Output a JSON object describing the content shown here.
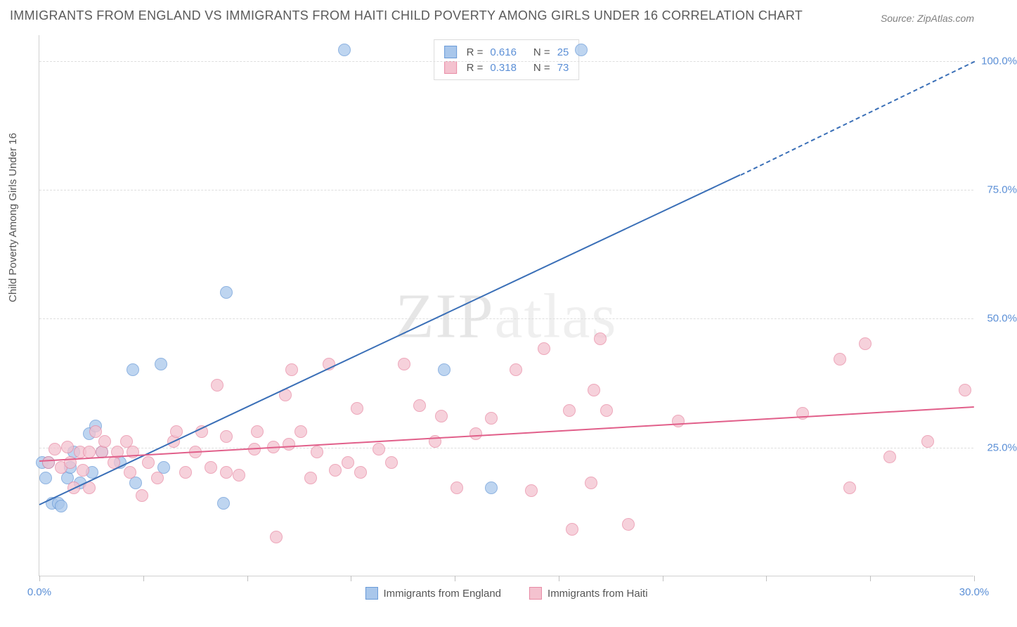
{
  "title": "IMMIGRANTS FROM ENGLAND VS IMMIGRANTS FROM HAITI CHILD POVERTY AMONG GIRLS UNDER 16 CORRELATION CHART",
  "source": "Source: ZipAtlas.com",
  "ylabel": "Child Poverty Among Girls Under 16",
  "watermark_a": "ZIP",
  "watermark_b": "atlas",
  "chart": {
    "type": "scatter",
    "background_color": "#ffffff",
    "grid_color": "#dedede",
    "axis_color": "#d0d0d0",
    "xlim": [
      0,
      30
    ],
    "ylim": [
      0,
      105
    ],
    "xticks": [
      0,
      3.33,
      6.67,
      10,
      13.33,
      16.67,
      20,
      23.33,
      26.67,
      30
    ],
    "xtick_labels": {
      "0": "0.0%",
      "30": "30.0%"
    },
    "yticks": [
      25,
      50,
      75,
      100
    ],
    "ytick_labels": [
      "25.0%",
      "50.0%",
      "75.0%",
      "100.0%"
    ],
    "label_color": "#5b8fd6",
    "label_fontsize": 15,
    "marker_radius": 9,
    "marker_opacity_fill": 0.3,
    "marker_border_width": 1.2,
    "series": [
      {
        "name": "Immigrants from England",
        "fill": "#a9c7eb",
        "stroke": "#6a9bd8",
        "R": "0.616",
        "N": "25",
        "trend": {
          "x1": 0,
          "y1": 14,
          "x2_solid": 22.5,
          "y2_solid": 78,
          "x2_dash": 30,
          "y2_dash": 100,
          "color": "#3a6fb7",
          "width": 2.5
        },
        "points": [
          {
            "x": 0.1,
            "y": 22
          },
          {
            "x": 0.2,
            "y": 19
          },
          {
            "x": 0.3,
            "y": 22
          },
          {
            "x": 0.4,
            "y": 14
          },
          {
            "x": 0.6,
            "y": 14
          },
          {
            "x": 0.7,
            "y": 13.5
          },
          {
            "x": 0.9,
            "y": 19
          },
          {
            "x": 1.0,
            "y": 21
          },
          {
            "x": 1.1,
            "y": 24
          },
          {
            "x": 1.3,
            "y": 18
          },
          {
            "x": 1.6,
            "y": 27.5
          },
          {
            "x": 1.7,
            "y": 20
          },
          {
            "x": 1.8,
            "y": 29
          },
          {
            "x": 2.0,
            "y": 24
          },
          {
            "x": 2.6,
            "y": 22
          },
          {
            "x": 3.0,
            "y": 40
          },
          {
            "x": 3.1,
            "y": 18
          },
          {
            "x": 3.9,
            "y": 41
          },
          {
            "x": 4.0,
            "y": 21
          },
          {
            "x": 5.9,
            "y": 14
          },
          {
            "x": 6.0,
            "y": 55
          },
          {
            "x": 9.8,
            "y": 102
          },
          {
            "x": 13.0,
            "y": 40
          },
          {
            "x": 14.5,
            "y": 17
          },
          {
            "x": 17.4,
            "y": 102
          }
        ]
      },
      {
        "name": "Immigrants from Haiti",
        "fill": "#f4c2cf",
        "stroke": "#e88ba5",
        "R": "0.318",
        "N": "73",
        "trend": {
          "x1": 0,
          "y1": 22.5,
          "x2_solid": 30,
          "y2_solid": 33,
          "x2_dash": 30,
          "y2_dash": 33,
          "color": "#e15f8a",
          "width": 2.5
        },
        "points": [
          {
            "x": 0.3,
            "y": 22
          },
          {
            "x": 0.5,
            "y": 24.5
          },
          {
            "x": 0.7,
            "y": 21
          },
          {
            "x": 0.9,
            "y": 25
          },
          {
            "x": 1.0,
            "y": 22
          },
          {
            "x": 1.1,
            "y": 17
          },
          {
            "x": 1.3,
            "y": 24
          },
          {
            "x": 1.4,
            "y": 20.5
          },
          {
            "x": 1.6,
            "y": 24
          },
          {
            "x": 1.6,
            "y": 17
          },
          {
            "x": 1.8,
            "y": 28
          },
          {
            "x": 2.0,
            "y": 24
          },
          {
            "x": 2.1,
            "y": 26
          },
          {
            "x": 2.4,
            "y": 22
          },
          {
            "x": 2.5,
            "y": 24
          },
          {
            "x": 2.8,
            "y": 26
          },
          {
            "x": 2.9,
            "y": 20
          },
          {
            "x": 3.0,
            "y": 24
          },
          {
            "x": 3.3,
            "y": 15.5
          },
          {
            "x": 3.5,
            "y": 22
          },
          {
            "x": 3.8,
            "y": 19
          },
          {
            "x": 4.3,
            "y": 26
          },
          {
            "x": 4.4,
            "y": 28
          },
          {
            "x": 4.7,
            "y": 20
          },
          {
            "x": 5.0,
            "y": 24
          },
          {
            "x": 5.2,
            "y": 28
          },
          {
            "x": 5.5,
            "y": 21
          },
          {
            "x": 5.7,
            "y": 37
          },
          {
            "x": 6.0,
            "y": 20
          },
          {
            "x": 6.0,
            "y": 27
          },
          {
            "x": 6.4,
            "y": 19.5
          },
          {
            "x": 6.9,
            "y": 24.5
          },
          {
            "x": 7.0,
            "y": 28
          },
          {
            "x": 7.5,
            "y": 25
          },
          {
            "x": 7.6,
            "y": 7.5
          },
          {
            "x": 7.9,
            "y": 35
          },
          {
            "x": 8.0,
            "y": 25.5
          },
          {
            "x": 8.1,
            "y": 40
          },
          {
            "x": 8.4,
            "y": 28
          },
          {
            "x": 8.7,
            "y": 19
          },
          {
            "x": 8.9,
            "y": 24
          },
          {
            "x": 9.3,
            "y": 41
          },
          {
            "x": 9.5,
            "y": 20.5
          },
          {
            "x": 9.9,
            "y": 22
          },
          {
            "x": 10.2,
            "y": 32.5
          },
          {
            "x": 10.3,
            "y": 20
          },
          {
            "x": 10.9,
            "y": 24.5
          },
          {
            "x": 11.3,
            "y": 22
          },
          {
            "x": 11.7,
            "y": 41
          },
          {
            "x": 12.2,
            "y": 33
          },
          {
            "x": 12.7,
            "y": 26
          },
          {
            "x": 12.9,
            "y": 31
          },
          {
            "x": 13.4,
            "y": 17
          },
          {
            "x": 14.0,
            "y": 27.5
          },
          {
            "x": 14.5,
            "y": 30.5
          },
          {
            "x": 15.3,
            "y": 40
          },
          {
            "x": 15.8,
            "y": 16.5
          },
          {
            "x": 16.2,
            "y": 44
          },
          {
            "x": 17.0,
            "y": 32
          },
          {
            "x": 17.1,
            "y": 9
          },
          {
            "x": 17.7,
            "y": 18
          },
          {
            "x": 17.8,
            "y": 36
          },
          {
            "x": 18.0,
            "y": 46
          },
          {
            "x": 18.2,
            "y": 32
          },
          {
            "x": 18.9,
            "y": 10
          },
          {
            "x": 20.5,
            "y": 30
          },
          {
            "x": 24.5,
            "y": 31.5
          },
          {
            "x": 25.7,
            "y": 42
          },
          {
            "x": 26.0,
            "y": 17
          },
          {
            "x": 26.5,
            "y": 45
          },
          {
            "x": 27.3,
            "y": 23
          },
          {
            "x": 28.5,
            "y": 26
          },
          {
            "x": 29.7,
            "y": 36
          }
        ]
      }
    ]
  }
}
